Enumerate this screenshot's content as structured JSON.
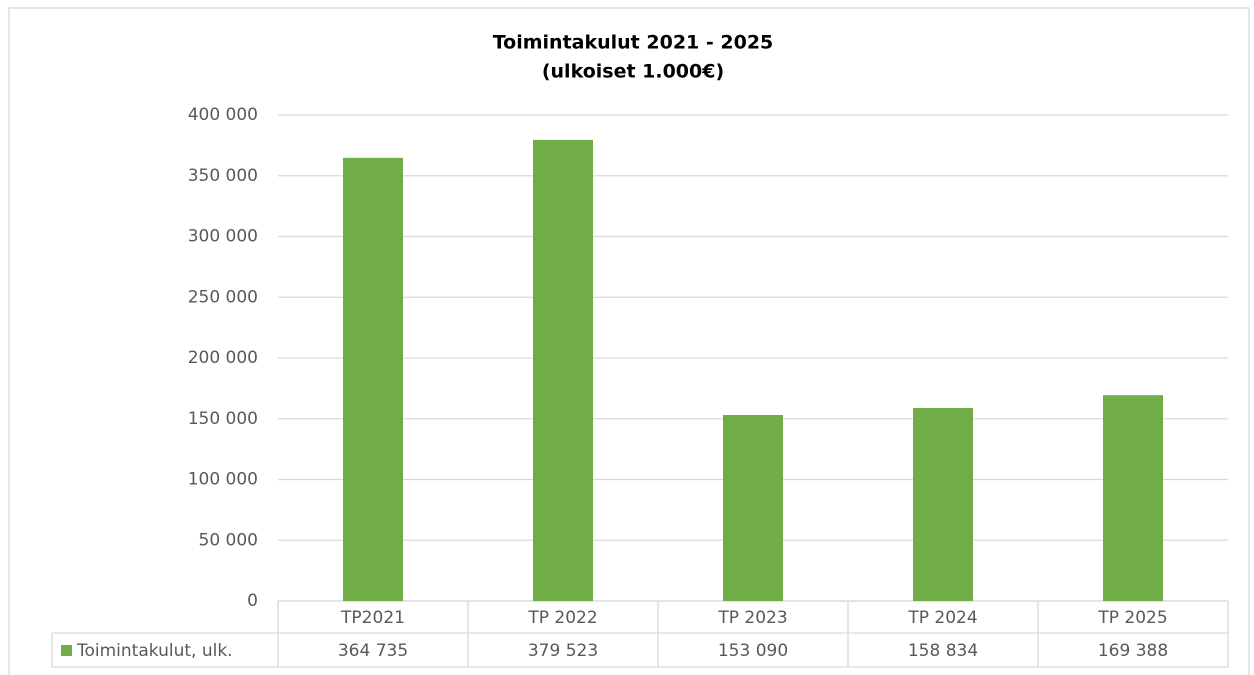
{
  "chart_data": {
    "type": "bar",
    "title": "Toimintakulut 2021 - 2025",
    "subtitle": "(ulkoiset 1.000€)",
    "categories": [
      "TP2021",
      "TP 2022",
      "TP 2023",
      "TP 2024",
      "TP 2025"
    ],
    "series": [
      {
        "name": "Toimintakulut, ulk.",
        "color": "#70ad47",
        "values": [
          364735,
          379523,
          153090,
          158834,
          169388
        ],
        "value_labels": [
          "364 735",
          "379 523",
          "153 090",
          "158 834",
          "169 388"
        ]
      }
    ],
    "ylim": [
      0,
      400000
    ],
    "yticks": [
      0,
      {
        "value": 50000,
        "label": "50 000"
      },
      {
        "value": 100000,
        "label": "100 000"
      },
      {
        "value": 150000,
        "label": "150 000"
      },
      {
        "value": 200000,
        "label": "200 000"
      },
      {
        "value": 250000,
        "label": "250 000"
      },
      {
        "value": 300000,
        "label": "300 000"
      },
      {
        "value": 350000,
        "label": "350 000"
      },
      {
        "value": 400000,
        "label": "400 000"
      }
    ],
    "grid": true
  }
}
